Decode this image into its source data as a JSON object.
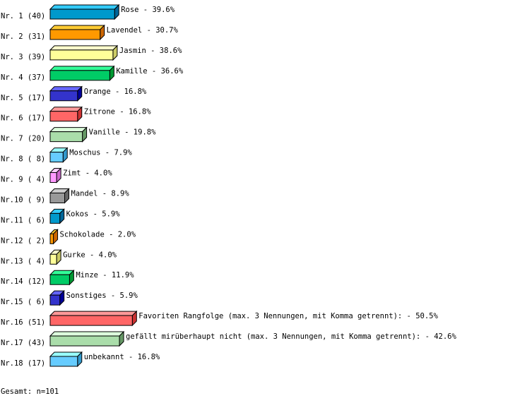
{
  "chart_data": {
    "type": "bar",
    "orientation": "horizontal",
    "style": "3d",
    "categories": [
      "Rose",
      "Lavendel",
      "Jasmin",
      "Kamille",
      "Orange",
      "Zitrone",
      "Vanille",
      "Moschus",
      "Zimt",
      "Mandel",
      "Kokos",
      "Schokolade",
      "Gurke",
      "Minze",
      "Sonstiges",
      "Favoriten Rangfolge (max. 3 Nennungen, mit Komma getrennt):",
      "gefällt mirüberhaupt nicht (max. 3 Nennungen, mit Komma getrennt):",
      "unbekannt"
    ],
    "row_labels": [
      "Nr. 1 (40)",
      "Nr. 2 (31)",
      "Nr. 3 (39)",
      "Nr. 4 (37)",
      "Nr. 5 (17)",
      "Nr. 6 (17)",
      "Nr. 7 (20)",
      "Nr. 8 ( 8)",
      "Nr. 9 ( 4)",
      "Nr.10 ( 9)",
      "Nr.11 ( 6)",
      "Nr.12 ( 2)",
      "Nr.13 ( 4)",
      "Nr.14 (12)",
      "Nr.15 ( 6)",
      "Nr.16 (51)",
      "Nr.17 (43)",
      "Nr.18 (17)"
    ],
    "counts": [
      40,
      31,
      39,
      37,
      17,
      17,
      20,
      8,
      4,
      9,
      6,
      2,
      4,
      12,
      6,
      51,
      43,
      17
    ],
    "percent_labels": [
      "39.6%",
      "30.7%",
      "38.6%",
      "36.6%",
      "16.8%",
      "16.8%",
      "19.8%",
      "7.9%",
      "4.0%",
      "8.9%",
      "5.9%",
      "2.0%",
      "4.0%",
      "11.9%",
      "5.9%",
      "50.5%",
      "42.6%",
      "16.8%"
    ],
    "palette": [
      {
        "front": "#0099cc",
        "top": "#33ccff",
        "side": "#006699"
      },
      {
        "front": "#ff9900",
        "top": "#ffcc33",
        "side": "#cc6600"
      },
      {
        "front": "#ffff99",
        "top": "#ffffcc",
        "side": "#cccc66"
      },
      {
        "front": "#00cc66",
        "top": "#33ff99",
        "side": "#009933"
      },
      {
        "front": "#3333cc",
        "top": "#6666ff",
        "side": "#000099"
      },
      {
        "front": "#ff6666",
        "top": "#ff9999",
        "side": "#cc3333"
      },
      {
        "front": "#aaddaa",
        "top": "#ddffdd",
        "side": "#669966"
      },
      {
        "front": "#66ccff",
        "top": "#99ffff",
        "side": "#3399cc"
      },
      {
        "front": "#ff99ff",
        "top": "#ffccff",
        "side": "#cc66cc"
      },
      {
        "front": "#999999",
        "top": "#cccccc",
        "side": "#666666"
      }
    ],
    "footer": "Gesamt: n=101"
  }
}
